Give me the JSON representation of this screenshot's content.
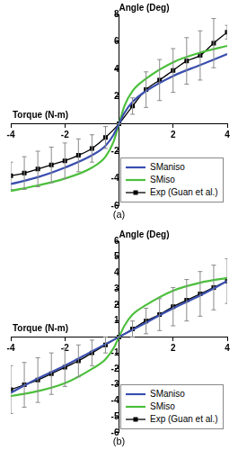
{
  "chart_data": [
    {
      "type": "line",
      "title": "(a)",
      "x_label": "Torque (N-m)",
      "y_label": "Angle (Deg)",
      "xlim": [
        -4,
        4
      ],
      "xticks": [
        -4,
        -2,
        2,
        4
      ],
      "ylim": [
        -6,
        8
      ],
      "yticks": [
        -6,
        -4,
        -2,
        2,
        4,
        6,
        8
      ],
      "grid": false,
      "legend": "lower right",
      "series": [
        {
          "name": "SManiso",
          "color": "#3a4fb0",
          "marker": "none",
          "line_style": "solid",
          "x": [
            -4,
            -3,
            -2,
            -1,
            -0.5,
            -0.2,
            0,
            0.2,
            0.5,
            1,
            2,
            3,
            4
          ],
          "values": [
            -4.4,
            -3.9,
            -3.2,
            -2.3,
            -1.6,
            -0.8,
            0,
            0.8,
            1.6,
            2.4,
            3.5,
            4.3,
            5.1
          ]
        },
        {
          "name": "SMiso",
          "color": "#4cbf3c",
          "marker": "none",
          "line_style": "solid",
          "x": [
            -4,
            -3,
            -2,
            -1,
            -0.5,
            -0.2,
            0,
            0.2,
            0.5,
            1,
            2,
            3,
            4
          ],
          "values": [
            -4.9,
            -4.5,
            -4.0,
            -3.2,
            -2.4,
            -1.3,
            0,
            1.3,
            2.4,
            3.3,
            4.5,
            5.2,
            5.7
          ]
        },
        {
          "name": "Exp (Guan et al.)",
          "color": "#000000",
          "marker": "square",
          "line_style": "solid",
          "x": [
            -4,
            -3.5,
            -3,
            -2.5,
            -2,
            -1.5,
            -1,
            -0.5,
            0,
            0.5,
            1,
            1.5,
            2,
            2.5,
            3,
            3.5,
            4
          ],
          "values": [
            -3.8,
            -3.6,
            -3.3,
            -3.0,
            -2.7,
            -2.3,
            -1.8,
            -1.0,
            0,
            1.3,
            2.5,
            3.2,
            3.9,
            4.6,
            5.0,
            5.9,
            6.7
          ],
          "errors": [
            1.0,
            1.2,
            1.3,
            1.3,
            1.3,
            1.2,
            1.0,
            0.8,
            0,
            0.6,
            1.3,
            1.5,
            1.6,
            1.7,
            1.8,
            1.8,
            0.5
          ]
        }
      ]
    },
    {
      "type": "line",
      "title": "(b)",
      "x_label": "Torque (N-m)",
      "y_label": "Angle (Deg)",
      "xlim": [
        -4,
        4
      ],
      "xticks": [
        -4,
        -2,
        2,
        4
      ],
      "ylim": [
        -6,
        6
      ],
      "yticks": [
        -6,
        -5,
        -4,
        -3,
        -2,
        -1,
        1,
        2,
        3,
        4,
        5,
        6
      ],
      "grid": false,
      "legend": "lower right",
      "series": [
        {
          "name": "SManiso",
          "color": "#3a4fb0",
          "marker": "none",
          "line_style": "solid",
          "x": [
            -4,
            -3,
            -2,
            -1,
            0,
            1,
            2,
            3,
            4
          ],
          "values": [
            -3.5,
            -2.6,
            -1.8,
            -0.9,
            0,
            0.9,
            1.8,
            2.6,
            3.5
          ]
        },
        {
          "name": "SMiso",
          "color": "#4cbf3c",
          "marker": "none",
          "line_style": "solid",
          "x": [
            -4,
            -3,
            -2,
            -1,
            -0.5,
            -0.2,
            0,
            0.2,
            0.5,
            1,
            2,
            3,
            4
          ],
          "values": [
            -3.7,
            -3.4,
            -2.9,
            -2.0,
            -1.4,
            -0.7,
            0,
            0.7,
            1.4,
            2.0,
            2.9,
            3.4,
            3.7
          ]
        },
        {
          "name": "Exp (Guan et al.)",
          "color": "#000000",
          "marker": "square",
          "line_style": "solid",
          "x": [
            -4,
            -3.5,
            -3,
            -2.5,
            -2,
            -1.5,
            -1,
            -0.5,
            0,
            0.5,
            1,
            1.5,
            2,
            2.5,
            3,
            3.5,
            4
          ],
          "values": [
            -3.3,
            -3.0,
            -2.7,
            -2.3,
            -1.9,
            -1.5,
            -1.0,
            -0.5,
            0,
            0.5,
            1.0,
            1.4,
            1.9,
            2.3,
            2.7,
            3.1,
            3.5
          ],
          "errors": [
            1.5,
            1.4,
            1.4,
            1.3,
            1.2,
            1.0,
            0.8,
            0.5,
            0,
            0.5,
            0.8,
            1.0,
            1.2,
            1.3,
            1.4,
            1.4,
            1.4
          ]
        }
      ]
    }
  ]
}
